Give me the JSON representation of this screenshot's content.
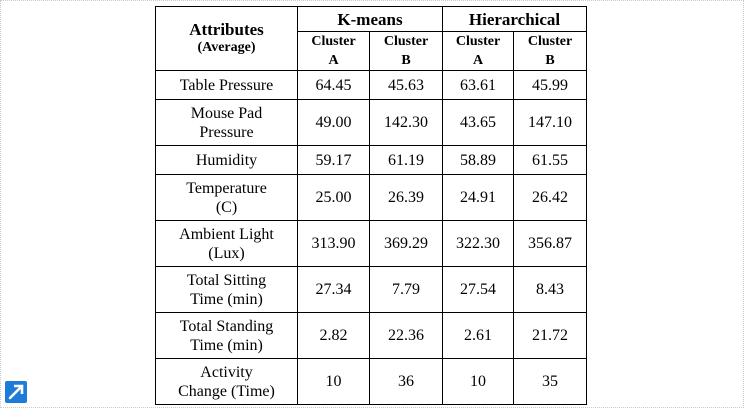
{
  "table": {
    "attr_header": "Attributes",
    "attr_header_sub": "(Average)",
    "group_kmeans": "K-means",
    "group_hier": "Hierarchical",
    "clusters": [
      {
        "l1": "Cluster",
        "l2": "A"
      },
      {
        "l1": "Cluster",
        "l2": "B"
      },
      {
        "l1": "Cluster",
        "l2": "A"
      },
      {
        "l1": "Cluster",
        "l2": "B"
      }
    ],
    "rows": [
      {
        "attr": [
          "Table Pressure"
        ],
        "values": [
          "64.45",
          "45.63",
          "63.61",
          "45.99"
        ]
      },
      {
        "attr": [
          "Mouse Pad",
          "Pressure"
        ],
        "values": [
          "49.00",
          "142.30",
          "43.65",
          "147.10"
        ]
      },
      {
        "attr": [
          "Humidity"
        ],
        "values": [
          "59.17",
          "61.19",
          "58.89",
          "61.55"
        ]
      },
      {
        "attr": [
          "Temperature",
          "(C)"
        ],
        "values": [
          "25.00",
          "26.39",
          "24.91",
          "26.42"
        ]
      },
      {
        "attr": [
          "Ambient Light",
          "(Lux)"
        ],
        "values": [
          "313.90",
          "369.29",
          "322.30",
          "356.87"
        ]
      },
      {
        "attr": [
          "Total Sitting",
          "Time (min)"
        ],
        "values": [
          "27.34",
          "7.79",
          "27.54",
          "8.43"
        ]
      },
      {
        "attr": [
          "Total Standing",
          "Time (min)"
        ],
        "values": [
          "2.82",
          "22.36",
          "2.61",
          "21.72"
        ]
      },
      {
        "attr": [
          "Activity",
          "Change (Time)"
        ],
        "values": [
          "10",
          "36",
          "10",
          "35"
        ]
      }
    ]
  },
  "icons": {
    "expand": "expand-arrow-icon",
    "accent_color": "#1e7cd8"
  }
}
